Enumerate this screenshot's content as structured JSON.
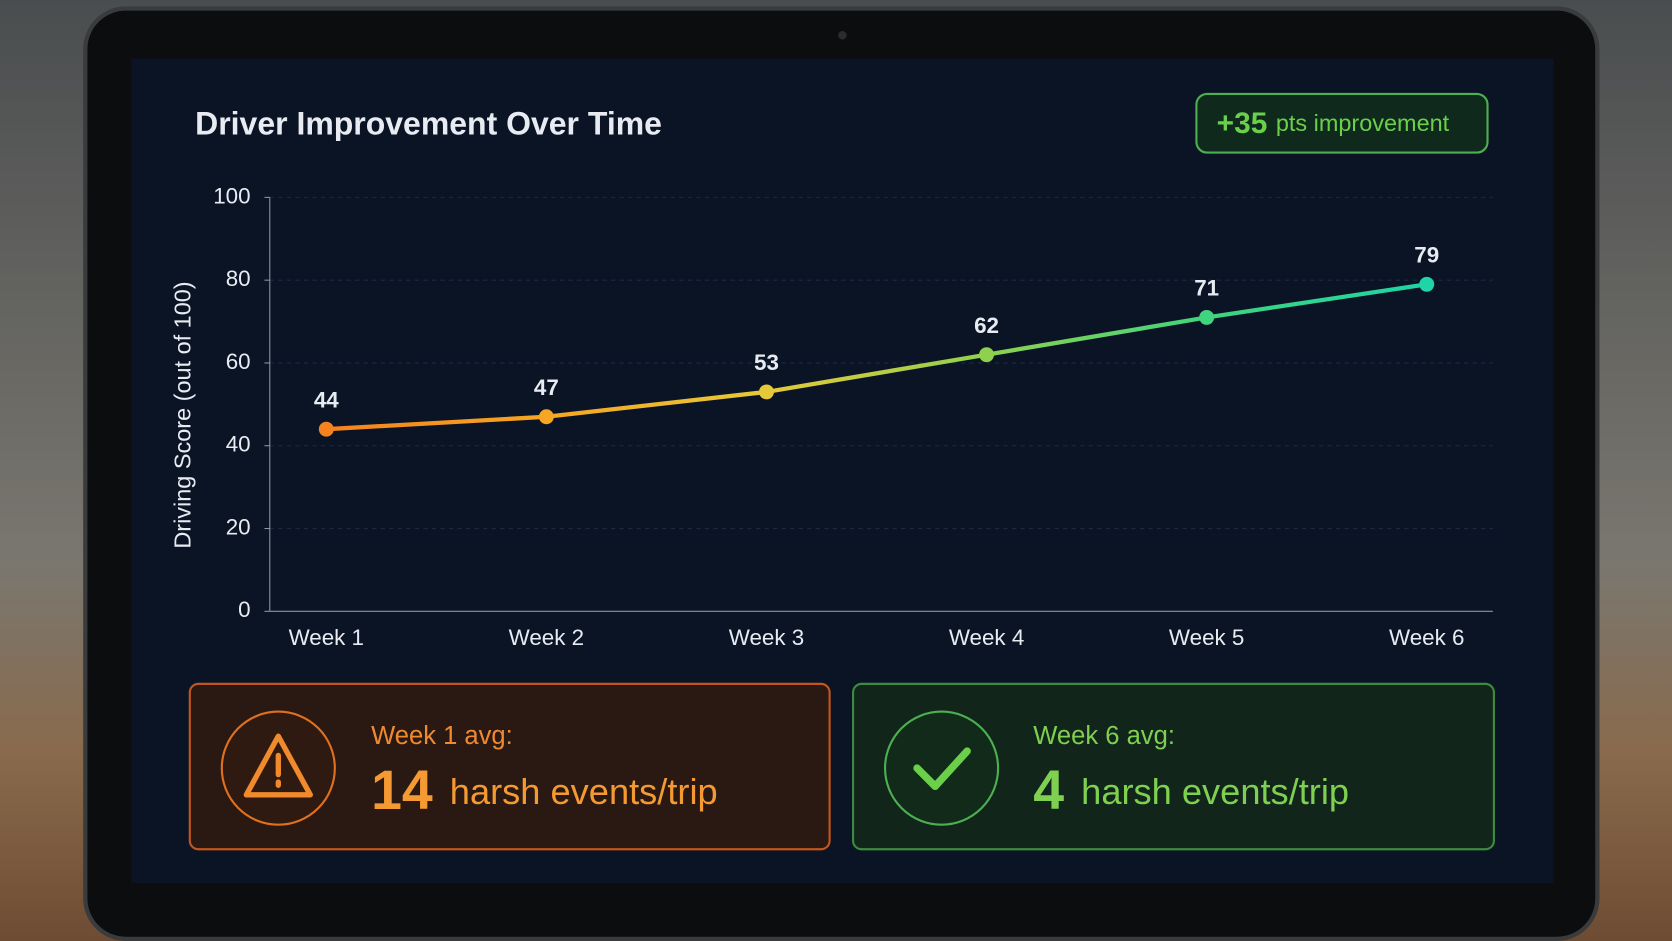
{
  "chart_data": {
    "type": "line",
    "title": "Driver Improvement Over Time",
    "badge": {
      "number": "+35",
      "text": "pts improvement"
    },
    "y_label": "Driving Score (out of 100)",
    "categories": [
      "Week 1",
      "Week 2",
      "Week 3",
      "Week 4",
      "Week 5",
      "Week 6"
    ],
    "series": [
      {
        "values": [
          44,
          47,
          53,
          62,
          71,
          79
        ],
        "point_colors": [
          "#f5821f",
          "#f5a623",
          "#e6c93a",
          "#8fd14f",
          "#3fd47e",
          "#1fd4a6"
        ]
      }
    ],
    "ylim": [
      0,
      100
    ],
    "yticks": [
      0,
      20,
      40,
      60,
      80,
      100
    ],
    "grid": true,
    "cards": [
      {
        "label": "Week 1 avg:",
        "number": 14,
        "text": "harsh events/trip"
      },
      {
        "label": "Week 6 avg:",
        "number": 4,
        "text": "harsh events/trip"
      }
    ]
  }
}
